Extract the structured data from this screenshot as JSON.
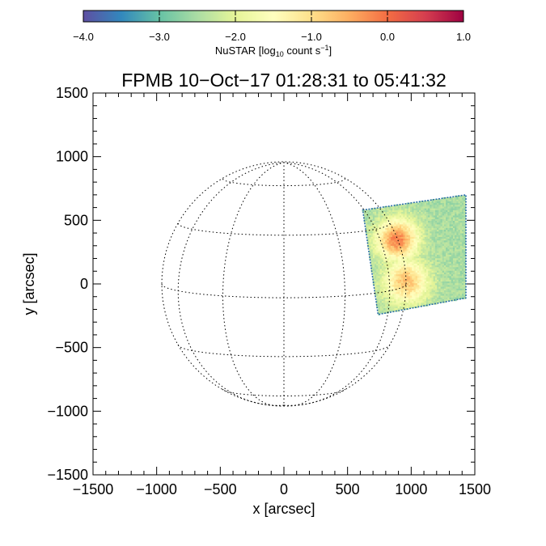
{
  "chart_data": {
    "type": "heatmap",
    "title": "FPMB 10−Oct−17 01:28:31 to 05:41:32",
    "xlabel": "x [arcsec]",
    "ylabel": "y [arcsec]",
    "xlim": [
      -1500,
      1500
    ],
    "ylim": [
      -1500,
      1500
    ],
    "x_ticks": [
      -1500,
      -1000,
      -500,
      0,
      500,
      1000,
      1500
    ],
    "y_ticks": [
      -1500,
      -1000,
      -500,
      0,
      500,
      1000,
      1500
    ],
    "x_tick_labels": [
      "−1500",
      "−1000",
      "−500",
      "0",
      "500",
      "1000",
      "1500"
    ],
    "y_tick_labels": [
      "−1500",
      "−1000",
      "−500",
      "0",
      "500",
      "1000",
      "1500"
    ],
    "grid": false,
    "solar_grid": {
      "radius_arcsec": 960,
      "latitudes_deg": [
        -60,
        -30,
        0,
        30,
        60
      ],
      "longitudes_deg": [
        -60,
        -30,
        0,
        30,
        60
      ]
    },
    "colorbar": {
      "label_prefix": "NuSTAR [log",
      "label_sub": "10",
      "label_mid": " count s",
      "label_sup": "−1",
      "label_suffix": "]",
      "min": -4.0,
      "max": 1.0,
      "ticks": [
        -4.0,
        -3.0,
        -2.0,
        -1.0,
        0.0,
        1.0
      ],
      "tick_labels": [
        "−4.0",
        "−3.0",
        "−2.0",
        "−1.0",
        "0.0",
        "1.0"
      ],
      "colormap": [
        "#5e4fa2",
        "#3288bd",
        "#66c2a5",
        "#abdda4",
        "#e6f598",
        "#ffffbf",
        "#fee08b",
        "#fdae61",
        "#f46d43",
        "#d53e4f",
        "#9e0142"
      ]
    },
    "image_field": {
      "corners_arcsec": [
        [
          620,
          580
        ],
        [
          1430,
          700
        ],
        [
          1430,
          -110
        ],
        [
          740,
          -240
        ]
      ],
      "background_level": -2.5,
      "sources": [
        {
          "x": 890,
          "y": 350,
          "peak": -0.15,
          "sigma": 110
        },
        {
          "x": 960,
          "y": 20,
          "peak": -0.7,
          "sigma": 120
        }
      ]
    }
  }
}
